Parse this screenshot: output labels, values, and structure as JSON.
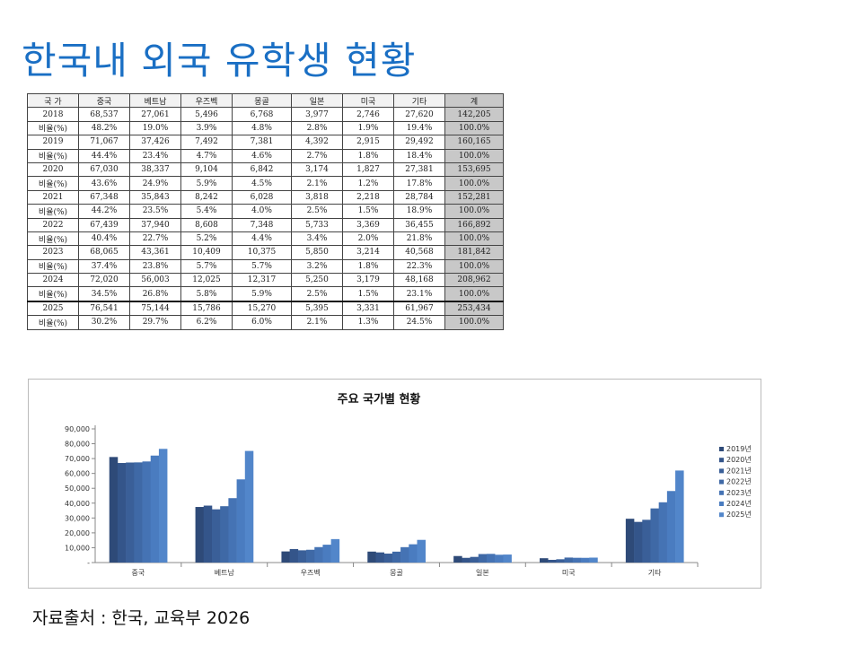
{
  "page_title": "한국내 외국 유학생 현황",
  "source_text": "자료출처 : 한국, 교육부 2026",
  "table": {
    "headers": [
      "국  가",
      "중국",
      "베트남",
      "우즈벡",
      "몽골",
      "일본",
      "미국",
      "기타",
      "계"
    ],
    "rows": [
      [
        "2018",
        "68,537",
        "27,061",
        "5,496",
        "6,768",
        "3,977",
        "2,746",
        "27,620",
        "142,205"
      ],
      [
        "비율(%)",
        "48.2%",
        "19.0%",
        "3.9%",
        "4.8%",
        "2.8%",
        "1.9%",
        "19.4%",
        "100.0%"
      ],
      [
        "2019",
        "71,067",
        "37,426",
        "7,492",
        "7,381",
        "4,392",
        "2,915",
        "29,492",
        "160,165"
      ],
      [
        "비율(%)",
        "44.4%",
        "23.4%",
        "4.7%",
        "4.6%",
        "2.7%",
        "1.8%",
        "18.4%",
        "100.0%"
      ],
      [
        "2020",
        "67,030",
        "38,337",
        "9,104",
        "6,842",
        "3,174",
        "1,827",
        "27,381",
        "153,695"
      ],
      [
        "비율(%)",
        "43.6%",
        "24.9%",
        "5.9%",
        "4.5%",
        "2.1%",
        "1.2%",
        "17.8%",
        "100.0%"
      ],
      [
        "2021",
        "67,348",
        "35,843",
        "8,242",
        "6,028",
        "3,818",
        "2,218",
        "28,784",
        "152,281"
      ],
      [
        "비율(%)",
        "44.2%",
        "23.5%",
        "5.4%",
        "4.0%",
        "2.5%",
        "1.5%",
        "18.9%",
        "100.0%"
      ],
      [
        "2022",
        "67,439",
        "37,940",
        "8,608",
        "7,348",
        "5,733",
        "3,369",
        "36,455",
        "166,892"
      ],
      [
        "비율(%)",
        "40.4%",
        "22.7%",
        "5.2%",
        "4.4%",
        "3.4%",
        "2.0%",
        "21.8%",
        "100.0%"
      ],
      [
        "2023",
        "68,065",
        "43,361",
        "10,409",
        "10,375",
        "5,850",
        "3,214",
        "40,568",
        "181,842"
      ],
      [
        "비율(%)",
        "37.4%",
        "23.8%",
        "5.7%",
        "5.7%",
        "3.2%",
        "1.8%",
        "22.3%",
        "100.0%"
      ],
      [
        "2024",
        "72,020",
        "56,003",
        "12,025",
        "12,317",
        "5,250",
        "3,179",
        "48,168",
        "208,962"
      ],
      [
        "비율(%)",
        "34.5%",
        "26.8%",
        "5.8%",
        "5.9%",
        "2.5%",
        "1.5%",
        "23.1%",
        "100.0%"
      ],
      [
        "2025",
        "76,541",
        "75,144",
        "15,786",
        "15,270",
        "5,395",
        "3,331",
        "61,967",
        "253,434"
      ],
      [
        "비율(%)",
        "30.2%",
        "29.7%",
        "6.2%",
        "6.0%",
        "2.1%",
        "1.3%",
        "24.5%",
        "100.0%"
      ]
    ]
  },
  "chart_data": {
    "type": "bar",
    "title": "주요 국가별 현황",
    "categories": [
      "중국",
      "베트남",
      "우즈벡",
      "몽골",
      "일본",
      "미국",
      "기타"
    ],
    "ylim": [
      0,
      90000
    ],
    "yticks": [
      0,
      10000,
      20000,
      30000,
      40000,
      50000,
      60000,
      70000,
      80000,
      90000
    ],
    "ytick_labels": [
      "-",
      "10,000",
      "20,000",
      "30,000",
      "40,000",
      "50,000",
      "60,000",
      "70,000",
      "80,000",
      "90,000"
    ],
    "legend_position": "right",
    "gridlines": false,
    "series": [
      {
        "name": "2019년",
        "color": "#2e4a78",
        "values": [
          71067,
          37426,
          7492,
          7381,
          4392,
          2915,
          29492
        ]
      },
      {
        "name": "2020년",
        "color": "#34558a",
        "values": [
          67030,
          38337,
          9104,
          6842,
          3174,
          1827,
          27381
        ]
      },
      {
        "name": "2021년",
        "color": "#3a5f98",
        "values": [
          67348,
          35843,
          8242,
          6028,
          3818,
          2218,
          28784
        ]
      },
      {
        "name": "2022년",
        "color": "#3f69a6",
        "values": [
          67439,
          37940,
          8608,
          7348,
          5733,
          3369,
          36455
        ]
      },
      {
        "name": "2023년",
        "color": "#4573b4",
        "values": [
          68065,
          43361,
          10409,
          10375,
          5850,
          3214,
          40568
        ]
      },
      {
        "name": "2024년",
        "color": "#4a7cc0",
        "values": [
          72020,
          56003,
          12025,
          12317,
          5250,
          3179,
          48168
        ]
      },
      {
        "name": "2025년",
        "color": "#5286ca",
        "values": [
          76541,
          75144,
          15786,
          15270,
          5395,
          3331,
          61967
        ]
      }
    ]
  }
}
